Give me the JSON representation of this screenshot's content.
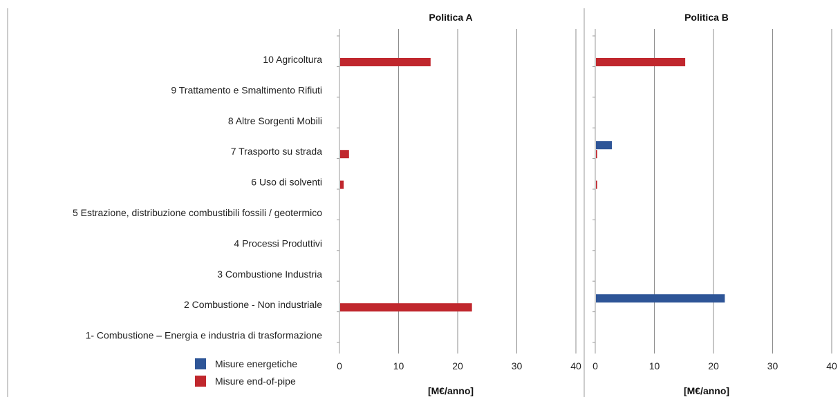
{
  "chart_data": {
    "type": "bar",
    "orientation": "horizontal",
    "categories": [
      "10 Agricoltura",
      "9 Trattamento e Smaltimento Rifiuti",
      "8 Altre Sorgenti Mobili",
      "7 Trasporto su strada",
      "6 Uso di solventi",
      "5 Estrazione, distribuzione combustibili fossili / geotermico",
      "4 Processi Produttivi",
      "3 Combustione  Industria",
      "2 Combustione - Non industriale",
      "1- Combustione – Energia e industria di trasformazione"
    ],
    "legend": [
      {
        "name": "Misure energetiche",
        "color": "#2e5597"
      },
      {
        "name": "Misure end-of-pipe",
        "color": "#c0272d"
      }
    ],
    "xlim": [
      0,
      40
    ],
    "xticks": [
      "0",
      "10",
      "20",
      "30",
      "40"
    ],
    "grid": true,
    "legend_position": "bottom-left",
    "panels": [
      {
        "title": "Politica A",
        "xlabel": "[M€/anno]",
        "series": [
          {
            "name": "Misure energetiche",
            "values": [
              0,
              0,
              0,
              0,
              0,
              0,
              0,
              0,
              0,
              0
            ]
          },
          {
            "name": "Misure end-of-pipe",
            "values": [
              15.3,
              0,
              0,
              1.5,
              0.6,
              0,
              0,
              0,
              22.3,
              0
            ]
          }
        ]
      },
      {
        "title": "Politica B",
        "xlabel": "[M€/anno]",
        "series": [
          {
            "name": "Misure energetiche",
            "values": [
              0,
              0,
              0,
              2.7,
              0,
              0,
              0,
              0,
              21.8,
              0
            ]
          },
          {
            "name": "Misure end-of-pipe",
            "values": [
              15.1,
              0,
              0,
              0.2,
              0.2,
              0,
              0,
              0,
              0,
              0
            ]
          }
        ]
      }
    ]
  }
}
